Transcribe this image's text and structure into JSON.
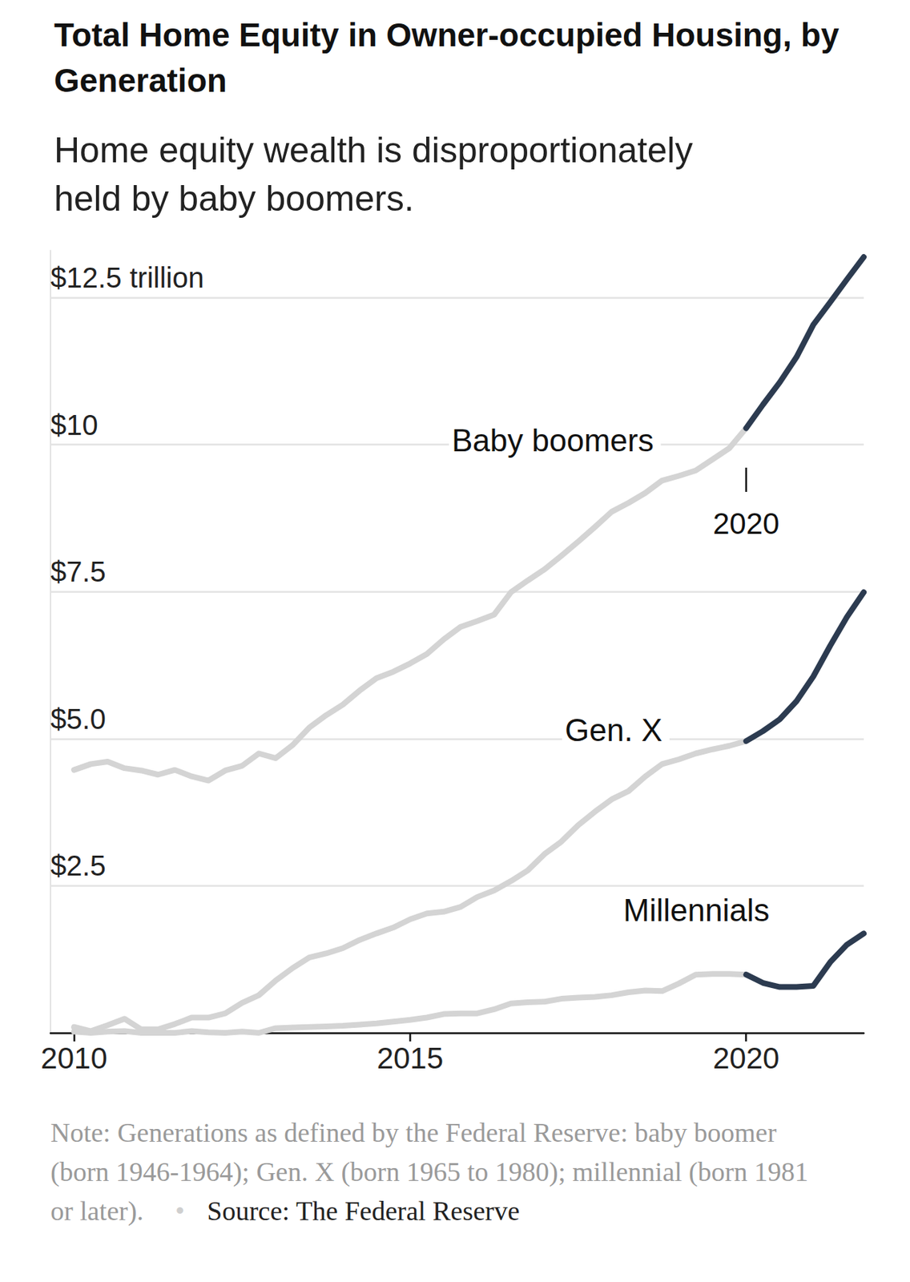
{
  "chart_data": {
    "type": "line",
    "title": "Total Home Equity in Owner-occupied Housing, by Generation",
    "subtitle": "Home equity wealth is disproportionately held by baby boomers.",
    "note": "Note: Generations as defined by the Federal Reserve: baby boomer (born 1946-1964); Gen. X (born 1965 to 1980); millennial (born 1981 or later).",
    "note_separator": "•",
    "source": "Source: The Federal Reserve",
    "annotations": [
      {
        "text": "2020",
        "x": 2020
      }
    ],
    "x": [
      2010,
      2010.25,
      2010.5,
      2010.75,
      2011,
      2011.25,
      2011.5,
      2011.75,
      2012,
      2012.25,
      2012.5,
      2012.75,
      2013,
      2013.25,
      2013.5,
      2013.75,
      2014,
      2014.25,
      2014.5,
      2014.75,
      2015,
      2015.25,
      2015.5,
      2015.75,
      2016,
      2016.25,
      2016.5,
      2016.75,
      2017,
      2017.25,
      2017.5,
      2017.75,
      2018,
      2018.25,
      2018.5,
      2018.75,
      2019,
      2019.25,
      2019.5,
      2019.75,
      2020,
      2020.25,
      2020.5,
      2020.75,
      2021,
      2021.25,
      2021.5,
      2021.75
    ],
    "xlim": [
      2009.65,
      2021.75
    ],
    "xticks": [
      2010,
      2015,
      2020
    ],
    "ylim": [
      0,
      13.3
    ],
    "yticks": [
      {
        "value": 2.5,
        "label": "$2.5"
      },
      {
        "value": 5,
        "label": "$5.0"
      },
      {
        "value": 7.5,
        "label": "$7.5"
      },
      {
        "value": 10,
        "label": "$10"
      },
      {
        "value": 12.5,
        "label": "$12.5 trillion"
      }
    ],
    "grid": true,
    "series": [
      {
        "name": "Baby boomers",
        "values": [
          4.47,
          4.57,
          4.61,
          4.5,
          4.46,
          4.39,
          4.47,
          4.36,
          4.29,
          4.46,
          4.54,
          4.75,
          4.67,
          4.89,
          5.19,
          5.4,
          5.58,
          5.82,
          6.03,
          6.14,
          6.28,
          6.44,
          6.69,
          6.9,
          7.0,
          7.11,
          7.49,
          7.69,
          7.88,
          8.11,
          8.35,
          8.6,
          8.86,
          9.01,
          9.18,
          9.39,
          9.47,
          9.56,
          9.75,
          9.94,
          10.28,
          10.68,
          11.06,
          11.49,
          12.04,
          12.42,
          12.81,
          13.19
        ],
        "colors": [
          "#d4d4d4",
          "#d4d4d4",
          "#d4d4d4",
          "#d4d4d4",
          "#d4d4d4",
          "#d4d4d4",
          "#d4d4d4",
          "#d4d4d4",
          "#d4d4d4",
          "#d4d4d4",
          "#d4d4d4",
          "#d4d4d4",
          "#d4d4d4",
          "#d4d4d4",
          "#d4d4d4",
          "#d4d4d4",
          "#d4d4d4",
          "#d4d4d4",
          "#d4d4d4",
          "#d4d4d4",
          "#d4d4d4",
          "#d4d4d4",
          "#d4d4d4",
          "#d4d4d4",
          "#d4d4d4",
          "#d4d4d4",
          "#d4d4d4",
          "#d4d4d4",
          "#d4d4d4",
          "#d4d4d4",
          "#d4d4d4",
          "#d4d4d4",
          "#d4d4d4",
          "#d4d4d4",
          "#d4d4d4",
          "#d4d4d4",
          "#d4d4d4",
          "#d4d4d4",
          "#d4d4d4",
          "#d4d4d4",
          "#2c3b50",
          "#2c3b50",
          "#2c3b50",
          "#2c3b50",
          "#2c3b50",
          "#2c3b50",
          "#2c3b50",
          "#2c3b50"
        ]
      },
      {
        "name": "Gen. X",
        "values": [
          0.1,
          0.03,
          0.13,
          0.24,
          0.06,
          0.06,
          0.15,
          0.26,
          0.26,
          0.33,
          0.51,
          0.64,
          0.89,
          1.1,
          1.28,
          1.35,
          1.44,
          1.58,
          1.69,
          1.79,
          1.93,
          2.03,
          2.06,
          2.14,
          2.31,
          2.42,
          2.58,
          2.76,
          3.04,
          3.25,
          3.53,
          3.76,
          3.97,
          4.11,
          4.36,
          4.57,
          4.65,
          4.75,
          4.82,
          4.88,
          4.96,
          5.13,
          5.33,
          5.64,
          6.06,
          6.58,
          7.07,
          7.49
        ],
        "colors": [
          "#d4d4d4",
          "#d4d4d4",
          "#d4d4d4",
          "#d4d4d4",
          "#d4d4d4",
          "#d4d4d4",
          "#d4d4d4",
          "#d4d4d4",
          "#d4d4d4",
          "#d4d4d4",
          "#d4d4d4",
          "#d4d4d4",
          "#d4d4d4",
          "#d4d4d4",
          "#d4d4d4",
          "#d4d4d4",
          "#d4d4d4",
          "#d4d4d4",
          "#d4d4d4",
          "#d4d4d4",
          "#d4d4d4",
          "#d4d4d4",
          "#d4d4d4",
          "#d4d4d4",
          "#d4d4d4",
          "#d4d4d4",
          "#d4d4d4",
          "#d4d4d4",
          "#d4d4d4",
          "#d4d4d4",
          "#d4d4d4",
          "#d4d4d4",
          "#d4d4d4",
          "#d4d4d4",
          "#d4d4d4",
          "#d4d4d4",
          "#d4d4d4",
          "#d4d4d4",
          "#d4d4d4",
          "#d4d4d4",
          "#2c3b50",
          "#2c3b50",
          "#2c3b50",
          "#2c3b50",
          "#2c3b50",
          "#2c3b50",
          "#2c3b50",
          "#2c3b50"
        ]
      },
      {
        "name": "Millennials",
        "values": [
          0.02,
          0.0,
          0.02,
          0.03,
          0.0,
          0.0,
          0.0,
          0.03,
          0.01,
          0.0,
          0.02,
          0.0,
          0.08,
          0.09,
          0.1,
          0.11,
          0.12,
          0.14,
          0.16,
          0.19,
          0.22,
          0.26,
          0.32,
          0.33,
          0.33,
          0.4,
          0.5,
          0.52,
          0.53,
          0.58,
          0.6,
          0.61,
          0.64,
          0.69,
          0.72,
          0.71,
          0.84,
          0.99,
          1.0,
          1.0,
          0.99,
          0.85,
          0.78,
          0.78,
          0.8,
          1.2,
          1.5,
          1.69
        ],
        "colors": [
          "#d4d4d4",
          "#d4d4d4",
          "#d4d4d4",
          "#d4d4d4",
          "#d4d4d4",
          "#d4d4d4",
          "#d4d4d4",
          "#d4d4d4",
          "#d4d4d4",
          "#d4d4d4",
          "#d4d4d4",
          "#d4d4d4",
          "#d4d4d4",
          "#d4d4d4",
          "#d4d4d4",
          "#d4d4d4",
          "#d4d4d4",
          "#d4d4d4",
          "#d4d4d4",
          "#d4d4d4",
          "#d4d4d4",
          "#d4d4d4",
          "#d4d4d4",
          "#d4d4d4",
          "#d4d4d4",
          "#d4d4d4",
          "#d4d4d4",
          "#d4d4d4",
          "#d4d4d4",
          "#d4d4d4",
          "#d4d4d4",
          "#d4d4d4",
          "#d4d4d4",
          "#d4d4d4",
          "#d4d4d4",
          "#d4d4d4",
          "#d4d4d4",
          "#d4d4d4",
          "#d4d4d4",
          "#d4d4d4",
          "#2c3b50",
          "#2c3b50",
          "#2c3b50",
          "#2c3b50",
          "#2c3b50",
          "#2c3b50",
          "#2c3b50",
          "#2c3b50"
        ]
      }
    ]
  }
}
